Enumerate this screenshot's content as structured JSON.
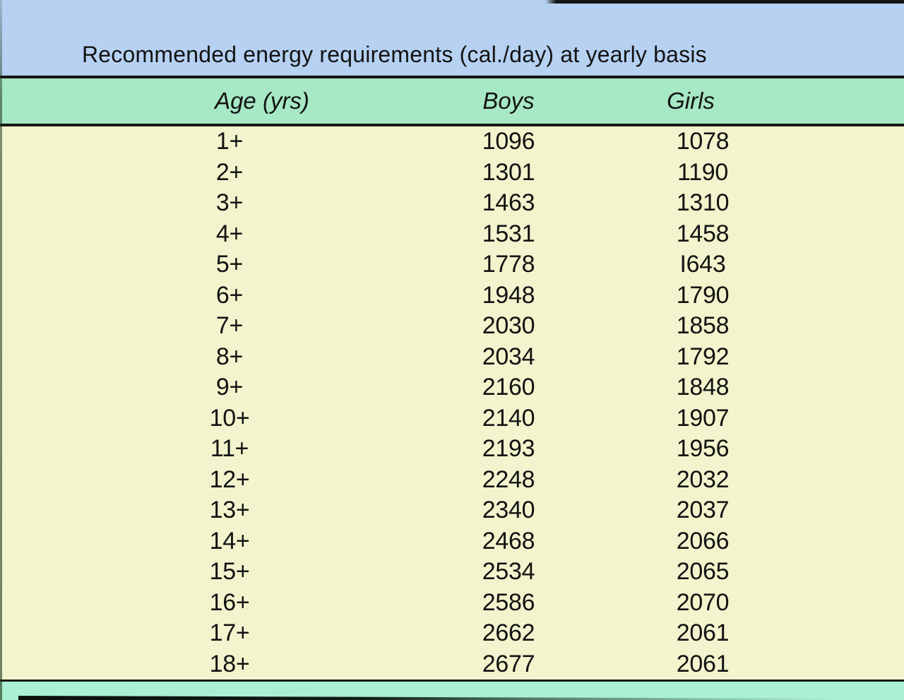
{
  "title": "Recommended energy requirements (cal./day) at yearly basis",
  "table": {
    "columns": [
      "Age (yrs)",
      "Boys",
      "Girls"
    ],
    "rows": [
      {
        "age": "1+",
        "boys": "1096",
        "girls": "1078"
      },
      {
        "age": "2+",
        "boys": "1301",
        "girls": "1190"
      },
      {
        "age": "3+",
        "boys": "1463",
        "girls": "1310"
      },
      {
        "age": "4+",
        "boys": "1531",
        "girls": "1458"
      },
      {
        "age": "5+",
        "boys": "1778",
        "girls": "I643"
      },
      {
        "age": "6+",
        "boys": "1948",
        "girls": "1790"
      },
      {
        "age": "7+",
        "boys": "2030",
        "girls": "1858"
      },
      {
        "age": "8+",
        "boys": "2034",
        "girls": "1792"
      },
      {
        "age": "9+",
        "boys": "2160",
        "girls": "1848"
      },
      {
        "age": "10+",
        "boys": "2140",
        "girls": "1907"
      },
      {
        "age": "11+",
        "boys": "2193",
        "girls": "1956"
      },
      {
        "age": "12+",
        "boys": "2248",
        "girls": "2032"
      },
      {
        "age": "13+",
        "boys": "2340",
        "girls": "2037"
      },
      {
        "age": "14+",
        "boys": "2468",
        "girls": "2066"
      },
      {
        "age": "15+",
        "boys": "2534",
        "girls": "2065"
      },
      {
        "age": "16+",
        "boys": "2586",
        "girls": "2070"
      },
      {
        "age": "17+",
        "boys": "2662",
        "girls": "2061"
      },
      {
        "age": "18+",
        "boys": "2677",
        "girls": "2061"
      }
    ]
  },
  "colors": {
    "blue_band": "#b6d1f2",
    "header_band": "#a7e8c5",
    "body_bg": "#f2f4cd",
    "bottom_band": "#aaf0d2",
    "rule": "#161616",
    "text": "#131313"
  }
}
